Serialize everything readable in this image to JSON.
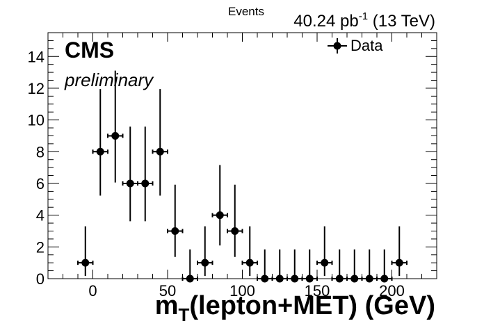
{
  "chart_data": {
    "type": "scatter",
    "title": "",
    "lumi_label": {
      "main": "40.24 pb",
      "sup": "-1",
      "tail": " (13 TeV)"
    },
    "experiment": "CMS",
    "status": "preliminary",
    "ylabel": "Events",
    "xlabel": {
      "prefix": "m",
      "sub": "T",
      "tail": "(lepton+MET) (GeV)"
    },
    "xlim": [
      -30,
      230
    ],
    "ylim": [
      0,
      15.5
    ],
    "x_ticks": [
      0,
      50,
      100,
      150,
      200
    ],
    "y_ticks": [
      0,
      2,
      4,
      6,
      8,
      10,
      12,
      14
    ],
    "legend": {
      "entries": [
        "Data"
      ],
      "placement": "top-right"
    },
    "bin_half_width": 5,
    "series": [
      {
        "name": "Data",
        "x": [
          -5,
          5,
          15,
          25,
          35,
          45,
          55,
          65,
          75,
          85,
          95,
          105,
          115,
          125,
          135,
          145,
          155,
          165,
          175,
          185,
          195,
          205
        ],
        "y": [
          1,
          8,
          9,
          6,
          6,
          8,
          3,
          0,
          1,
          4,
          3,
          1,
          0,
          0,
          0,
          0,
          1,
          0,
          0,
          0,
          0,
          1
        ],
        "err_low": [
          0.83,
          2.77,
          2.94,
          2.38,
          2.38,
          2.77,
          1.63,
          0,
          0.83,
          1.91,
          1.63,
          0.83,
          0,
          0,
          0,
          0,
          0.83,
          0,
          0,
          0,
          0,
          0.83
        ],
        "err_high": [
          2.3,
          3.95,
          4.11,
          3.58,
          3.58,
          3.95,
          2.92,
          1.84,
          2.3,
          3.16,
          2.92,
          2.3,
          1.84,
          1.84,
          1.84,
          1.84,
          2.3,
          1.84,
          1.84,
          1.84,
          1.84,
          2.3
        ]
      }
    ]
  }
}
